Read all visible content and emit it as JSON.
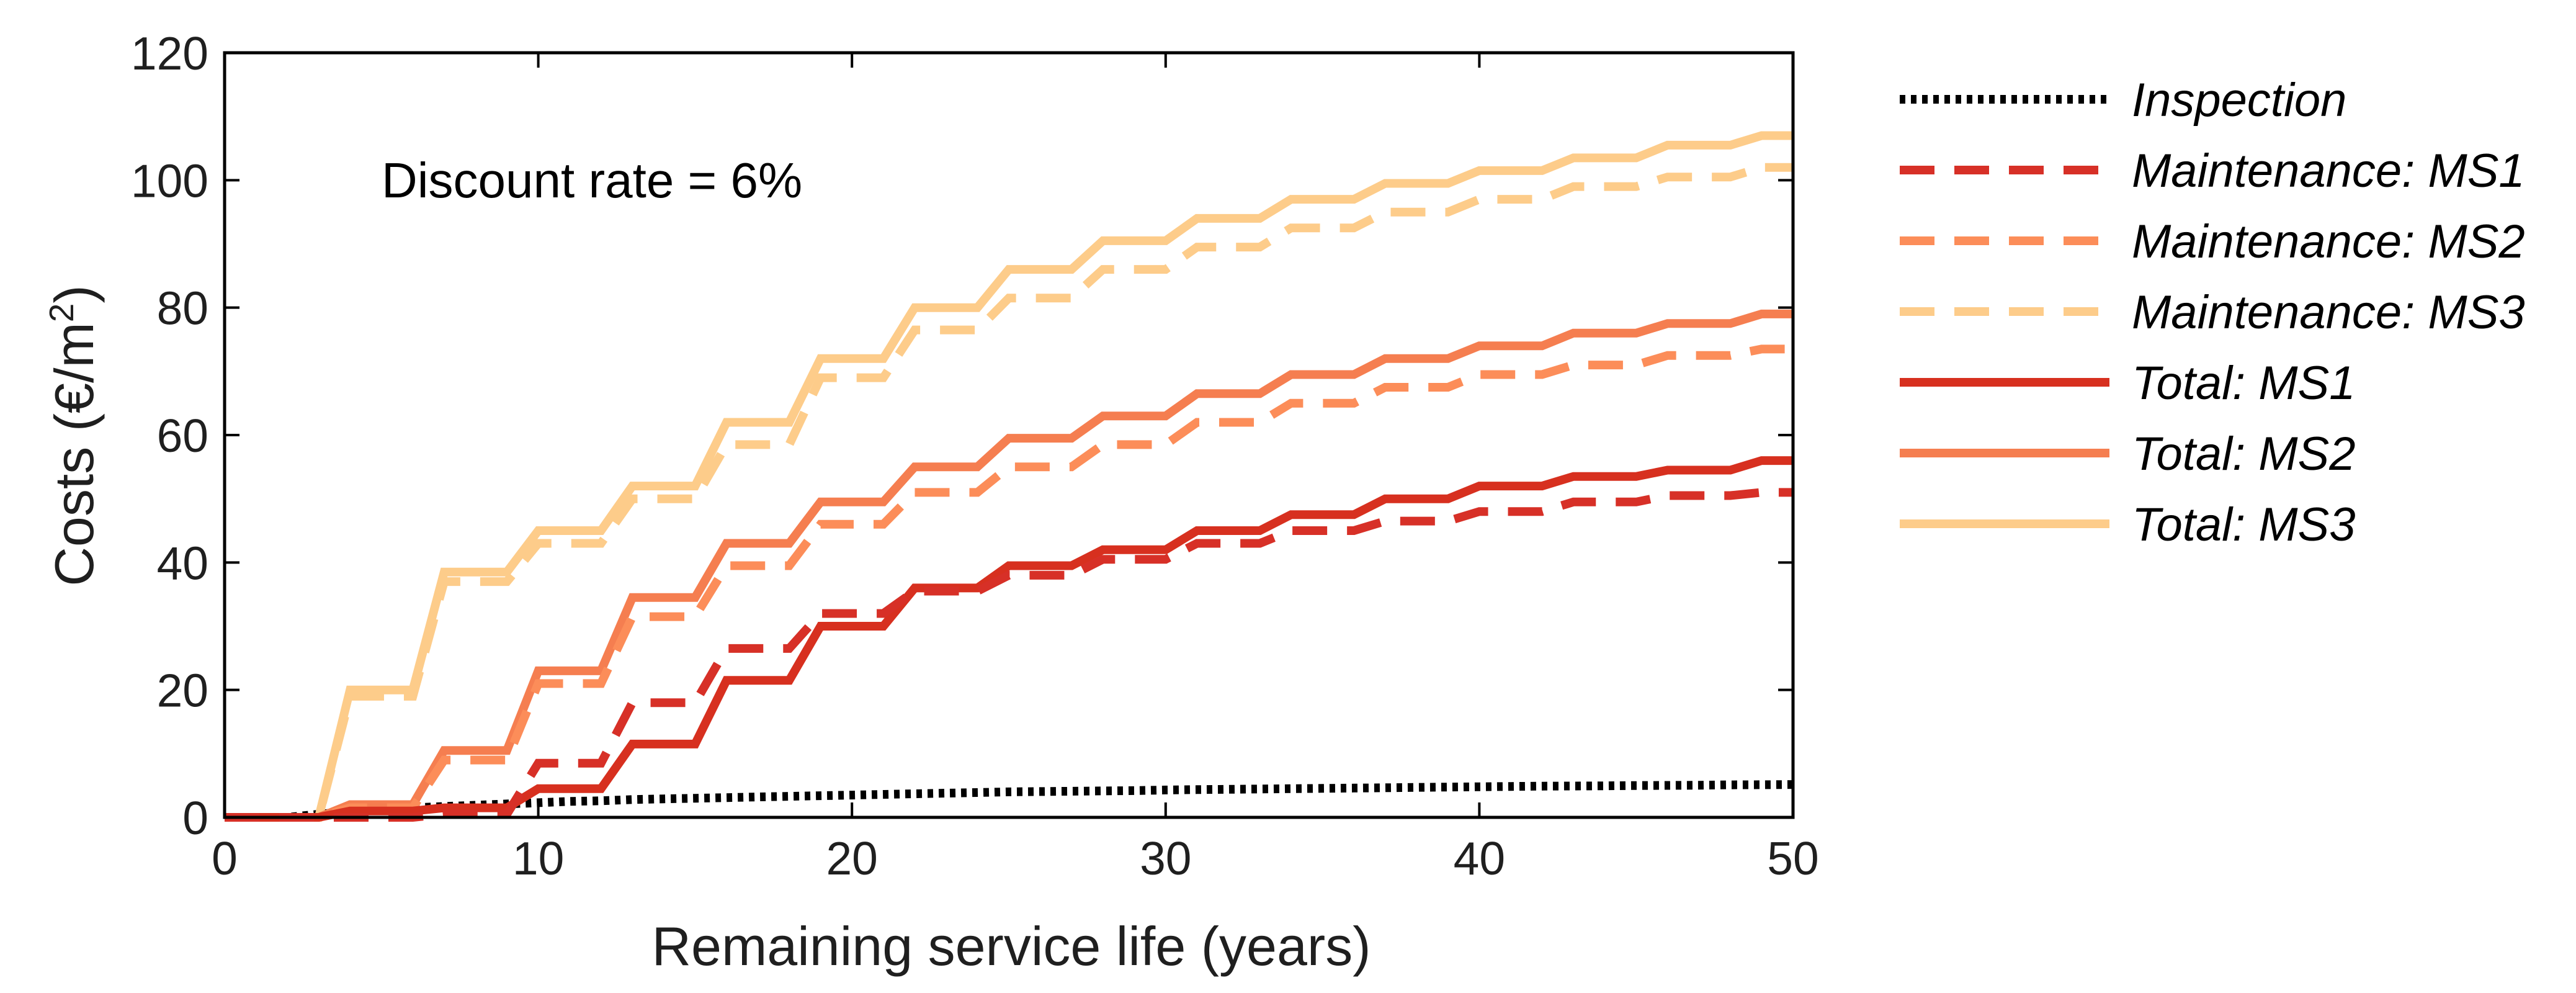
{
  "chart_data": {
    "type": "line",
    "title": "",
    "xlabel": "Remaining service life (years)",
    "ylabel_prefix": "Costs (€/m",
    "ylabel_sup": "2",
    "ylabel_suffix": ")",
    "xlim": [
      0,
      50
    ],
    "ylim": [
      0,
      120
    ],
    "xticks": [
      0,
      10,
      20,
      30,
      40,
      50
    ],
    "yticks": [
      0,
      20,
      40,
      60,
      80,
      100,
      120
    ],
    "xtick_labels": [
      "0",
      "10",
      "20",
      "30",
      "40",
      "50"
    ],
    "ytick_labels": [
      "0",
      "20",
      "40",
      "60",
      "80",
      "100",
      "120"
    ],
    "grid": false,
    "legend_position": "outside-right",
    "annotation": "Discount rate = 6%",
    "series": [
      {
        "name": "Inspection",
        "color": "#000000",
        "style": "dotted",
        "x": [
          0,
          2,
          3,
          4,
          5,
          6,
          7,
          8,
          9,
          10,
          11,
          12,
          13,
          14,
          15,
          16,
          17,
          18,
          19,
          20,
          21,
          22,
          23,
          24,
          25,
          26,
          27,
          28,
          29,
          30,
          31,
          32,
          33,
          34,
          35,
          36,
          37,
          38,
          39,
          40,
          41,
          42,
          43,
          44,
          45,
          46,
          47,
          48,
          49,
          50
        ],
        "values": [
          0,
          0,
          0.5,
          0.9,
          1.2,
          1.5,
          1.7,
          1.9,
          2.1,
          2.3,
          2.5,
          2.6,
          2.8,
          2.9,
          3.0,
          3.1,
          3.2,
          3.3,
          3.4,
          3.5,
          3.6,
          3.7,
          3.8,
          3.9,
          4.0,
          4.05,
          4.1,
          4.15,
          4.2,
          4.3,
          4.35,
          4.4,
          4.45,
          4.5,
          4.55,
          4.6,
          4.65,
          4.7,
          4.75,
          4.8,
          4.85,
          4.9,
          4.92,
          4.95,
          5.0,
          5.02,
          5.05,
          5.1,
          5.12,
          5.15
        ]
      },
      {
        "name": "Maintenance: MS1",
        "color": "#d73027",
        "style": "dashed",
        "step_ends": [
          3,
          6,
          9,
          12,
          15,
          18,
          21,
          24,
          27,
          30,
          33,
          36,
          39,
          42,
          45,
          48,
          50
        ],
        "values": [
          0,
          0,
          0.5,
          8.5,
          18,
          26.5,
          32,
          35.5,
          38,
          40.5,
          43,
          45,
          46.5,
          48,
          49.5,
          50.5,
          51
        ]
      },
      {
        "name": "Maintenance: MS2",
        "color": "#fc8d59",
        "style": "dashed",
        "step_ends": [
          3,
          6,
          9,
          12,
          15,
          18,
          21,
          24,
          27,
          30,
          33,
          36,
          39,
          42,
          45,
          48,
          50
        ],
        "values": [
          0,
          1.5,
          9,
          21,
          31.5,
          39.5,
          46,
          51,
          55,
          58.5,
          62,
          65,
          67.5,
          69.5,
          71,
          72.5,
          73.5
        ]
      },
      {
        "name": "Maintenance: MS3",
        "color": "#fdcc8a",
        "style": "dashed",
        "step_ends": [
          3,
          6,
          9,
          12,
          15,
          18,
          21,
          24,
          27,
          30,
          33,
          36,
          39,
          42,
          45,
          48,
          50
        ],
        "values": [
          0,
          19,
          37,
          43,
          50,
          58.5,
          69,
          76.5,
          81.5,
          86,
          89.5,
          92.5,
          95,
          97,
          99,
          100.5,
          102
        ]
      },
      {
        "name": "Total: MS1",
        "color": "#d7301f",
        "style": "solid",
        "step_ends": [
          3,
          6,
          9,
          12,
          15,
          18,
          21,
          24,
          27,
          30,
          33,
          36,
          39,
          42,
          45,
          48,
          50
        ],
        "values": [
          0,
          1,
          1.5,
          4.5,
          11.5,
          21.5,
          30,
          36,
          39.5,
          42,
          45,
          47.5,
          50,
          52,
          53.5,
          54.5,
          56
        ]
      },
      {
        "name": "Total: MS2",
        "color": "#f57e50",
        "style": "solid",
        "step_ends": [
          3,
          6,
          9,
          12,
          15,
          18,
          21,
          24,
          27,
          30,
          33,
          36,
          39,
          42,
          45,
          48,
          50
        ],
        "values": [
          0,
          2,
          10.5,
          23,
          34.5,
          43,
          49.5,
          55,
          59.5,
          63,
          66.5,
          69.5,
          72,
          74,
          76,
          77.5,
          79
        ]
      },
      {
        "name": "Total: MS3",
        "color": "#fdcc8a",
        "style": "solid",
        "step_ends": [
          3,
          6,
          9,
          12,
          15,
          18,
          21,
          24,
          27,
          30,
          33,
          36,
          39,
          42,
          45,
          48,
          50
        ],
        "values": [
          0,
          20,
          38.5,
          45,
          52,
          62,
          72,
          80,
          86,
          90.5,
          94,
          97,
          99.5,
          101.5,
          103.5,
          105.5,
          107
        ]
      }
    ]
  }
}
